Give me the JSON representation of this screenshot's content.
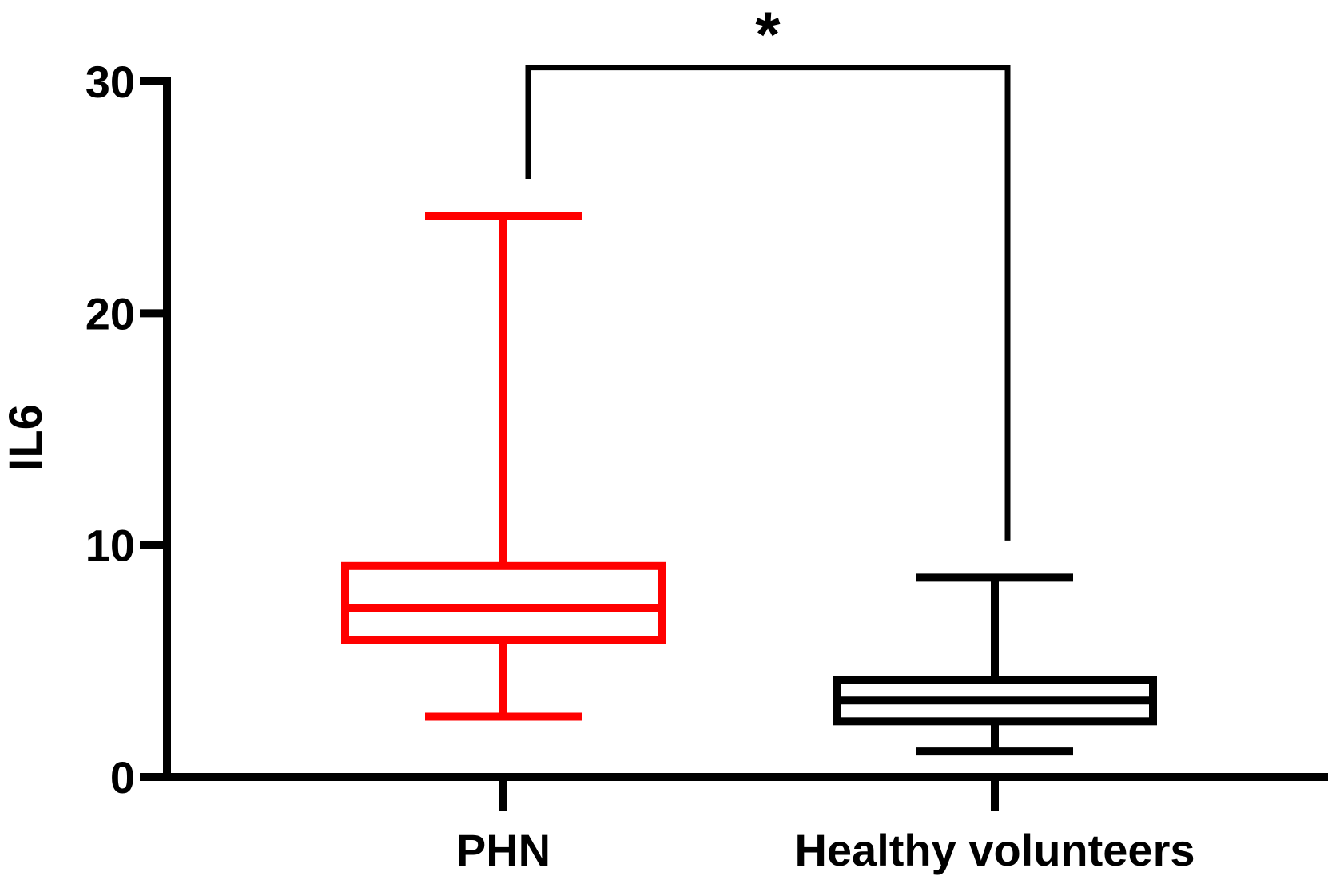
{
  "chart_data": {
    "type": "box",
    "ylabel": "IL6",
    "xlabel": "",
    "ylim": [
      0,
      30
    ],
    "yticks": [
      0,
      10,
      20,
      30
    ],
    "grid": false,
    "categories": [
      "PHN",
      "Healthy volunteers"
    ],
    "boxes": [
      {
        "category": "PHN",
        "min": 2.6,
        "q1": 5.9,
        "median": 7.3,
        "q3": 9.1,
        "max": 24.2,
        "color": "#ff0000"
      },
      {
        "category": "Healthy volunteers",
        "min": 1.1,
        "q1": 2.4,
        "median": 3.3,
        "q3": 4.2,
        "max": 8.6,
        "color": "#000000"
      }
    ],
    "annotations": [
      {
        "type": "significance-bracket",
        "from": "PHN",
        "to": "Healthy volunteers",
        "label": "*",
        "y": 30.6,
        "left_drop_to": 25.8,
        "right_drop_to": 10.2,
        "color": "#000000"
      }
    ]
  }
}
